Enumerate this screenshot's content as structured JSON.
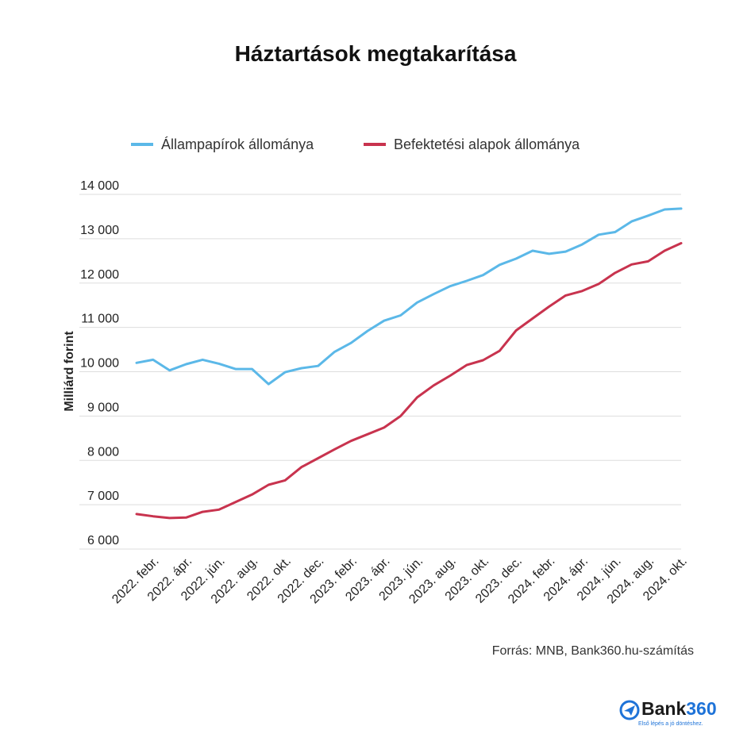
{
  "title": "Háztartások megtakarítása",
  "source": "Forrás: MNB, Bank360.hu-számítás",
  "logo": {
    "word": "Bank",
    "number": "360",
    "tagline": "Első lépés a jó döntéshez.",
    "icon": "plane-icon"
  },
  "colors": {
    "series1": "#5bb8e8",
    "series2": "#c8334e",
    "grid": "#dddddd",
    "text": "#222222"
  },
  "chart_data": {
    "type": "line",
    "title": "Háztartások megtakarítása",
    "ylabel": "Milliárd forint",
    "xlabel": "",
    "ylim": [
      6000,
      14000
    ],
    "yticks": [
      6000,
      7000,
      8000,
      9000,
      10000,
      11000,
      12000,
      13000,
      14000
    ],
    "ytick_labels": [
      "6 000",
      "7 000",
      "8 000",
      "9 000",
      "10 000",
      "11 000",
      "12 000",
      "13 000",
      "14 000"
    ],
    "grid": true,
    "legend": "top",
    "x": [
      "2022. jan.",
      "2022. febr.",
      "2022. márc.",
      "2022. ápr.",
      "2022. máj.",
      "2022. jún.",
      "2022. júl.",
      "2022. aug.",
      "2022. szept.",
      "2022. okt.",
      "2022. nov.",
      "2022. dec.",
      "2023. jan.",
      "2023. febr.",
      "2023. márc.",
      "2023. ápr.",
      "2023. máj.",
      "2023. jún.",
      "2023. júl.",
      "2023. aug.",
      "2023. szept.",
      "2023. okt.",
      "2023. nov.",
      "2023. dec.",
      "2024. jan.",
      "2024. febr.",
      "2024. márc.",
      "2024. ápr.",
      "2024. máj.",
      "2024. jún.",
      "2024. júl.",
      "2024. aug.",
      "2024. szept.",
      "2024. okt."
    ],
    "tick_labels": [
      "2022. febr.",
      "2022. ápr.",
      "2022. jún.",
      "2022. aug.",
      "2022. okt.",
      "2022. dec.",
      "2023. febr.",
      "2023. ápr.",
      "2023. jún.",
      "2023. aug.",
      "2023. okt.",
      "2023. dec.",
      "2024. febr.",
      "2024. ápr.",
      "2024. jún.",
      "2024. aug.",
      "2024. okt."
    ],
    "tick_positions": [
      1,
      3,
      5,
      7,
      9,
      11,
      13,
      15,
      17,
      19,
      21,
      23,
      25,
      27,
      29,
      31,
      33
    ],
    "series": [
      {
        "name": "Állampapírok állománya",
        "color": "#5bb8e8",
        "values": [
          10200,
          10270,
          10030,
          10170,
          10270,
          10180,
          10060,
          10060,
          9720,
          9990,
          10080,
          10130,
          10450,
          10650,
          10920,
          11150,
          11270,
          11560,
          11750,
          11930,
          12050,
          12180,
          12410,
          12550,
          12730,
          12660,
          12710,
          12870,
          13090,
          13150,
          13390,
          13520,
          13660,
          13680
        ]
      },
      {
        "name": "Befektetési alapok állománya",
        "color": "#c8334e",
        "values": [
          6790,
          6740,
          6700,
          6710,
          6840,
          6890,
          7060,
          7230,
          7450,
          7550,
          7850,
          8050,
          8250,
          8440,
          8590,
          8740,
          9000,
          9420,
          9690,
          9910,
          10150,
          10260,
          10470,
          10930,
          11200,
          11470,
          11720,
          11820,
          11980,
          12230,
          12420,
          12490,
          12730,
          12900
        ]
      }
    ]
  }
}
